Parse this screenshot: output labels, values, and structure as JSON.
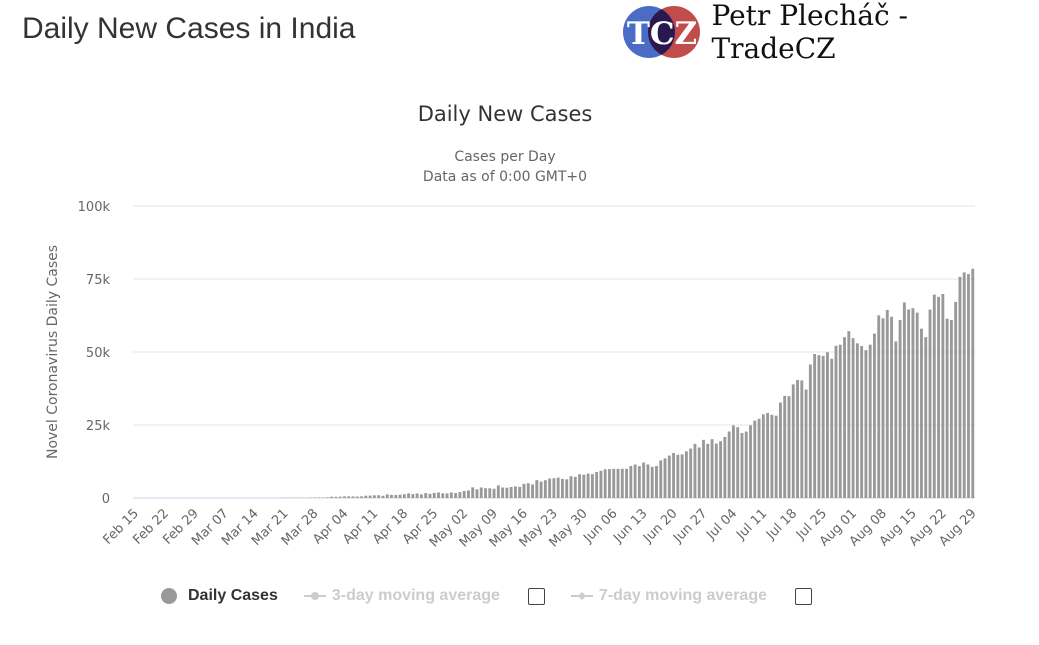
{
  "header": {
    "title": "Daily New Cases in India",
    "brand_logo_text": "TCZ",
    "brand_name": "Petr Plecháč - TradeCZ"
  },
  "colors": {
    "bars": "#999999",
    "logo_blue": "#4a6cc4",
    "logo_red": "#c04c4c",
    "legend_inactive": "#cccccc"
  },
  "legend": {
    "items": [
      {
        "label": "Daily Cases",
        "active": true
      },
      {
        "label": "3-day moving average",
        "active": false
      },
      {
        "label": "7-day moving average",
        "active": false
      }
    ]
  },
  "chart_data": {
    "type": "bar",
    "title": "Daily New Cases",
    "subtitle_1": "Cases per Day",
    "subtitle_2": "Data as of 0:00 GMT+0",
    "ylabel": "Novel Coronavirus Daily Cases",
    "ylim": [
      0,
      100000
    ],
    "yticks": [
      "0",
      "25k",
      "50k",
      "75k",
      "100k"
    ],
    "x_range": [
      "Feb 15",
      "Aug 29"
    ],
    "interval": "daily",
    "xticks": [
      "Feb 15",
      "Feb 22",
      "Feb 29",
      "Mar 07",
      "Mar 14",
      "Mar 21",
      "Mar 28",
      "Apr 04",
      "Apr 11",
      "Apr 18",
      "Apr 25",
      "May 02",
      "May 09",
      "May 16",
      "May 23",
      "May 30",
      "Jun 06",
      "Jun 13",
      "Jun 20",
      "Jun 27",
      "Jul 04",
      "Jul 11",
      "Jul 18",
      "Jul 25",
      "Aug 01",
      "Aug 08",
      "Aug 15",
      "Aug 22",
      "Aug 29"
    ],
    "grid": true,
    "values": [
      0,
      0,
      0,
      0,
      0,
      0,
      0,
      0,
      0,
      0,
      0,
      0,
      0,
      0,
      0,
      0,
      2,
      1,
      22,
      2,
      1,
      3,
      5,
      9,
      15,
      8,
      10,
      10,
      11,
      26,
      7,
      12,
      30,
      23,
      57,
      74,
      77,
      103,
      86,
      80,
      78,
      144,
      150,
      178,
      143,
      227,
      437,
      386,
      467,
      573,
      575,
      529,
      495,
      570,
      796,
      822,
      906,
      954,
      752,
      1243,
      1062,
      1035,
      1154,
      1305,
      1570,
      1332,
      1540,
      1252,
      1667,
      1409,
      1737,
      1887,
      1607,
      1568,
      1902,
      1718,
      1993,
      2396,
      2564,
      3656,
      2971,
      3602,
      3344,
      3339,
      3175,
      4311,
      3604,
      3524,
      3763,
      3942,
      3787,
      4864,
      5050,
      4630,
      6147,
      5611,
      6088,
      6654,
      6767,
      6977,
      6535,
      6387,
      7466,
      7254,
      8138,
      7964,
      8392,
      8171,
      8909,
      9304,
      9851,
      9887,
      9971,
      9983,
      9987,
      9985,
      10956,
      11458,
      10929,
      12145,
      11502,
      10667,
      10974,
      12881,
      13586,
      14516,
      15413,
      14821,
      14933,
      15968,
      16922,
      18552,
      17296,
      19906,
      18552,
      20131,
      18653,
      19428,
      20903,
      22771,
      24850,
      24248,
      22252,
      22752,
      24879,
      26506,
      27114,
      28637,
      29108,
      28498,
      28178,
      32695,
      34956,
      34884,
      38902,
      40425,
      40243,
      37148,
      45720,
      49310,
      48916,
      48661,
      49931,
      47703,
      52123,
      52479,
      55079,
      57118,
      54735,
      52972,
      52050,
      50629,
      52509,
      56282,
      62538,
      61537,
      64399,
      62064,
      53601,
      60963,
      66999,
      64553,
      65002,
      63490,
      57981,
      55079,
      64531,
      69652,
      68898,
      69874,
      61408,
      60975,
      67151,
      75760,
      77266,
      76665,
      78512
    ]
  }
}
